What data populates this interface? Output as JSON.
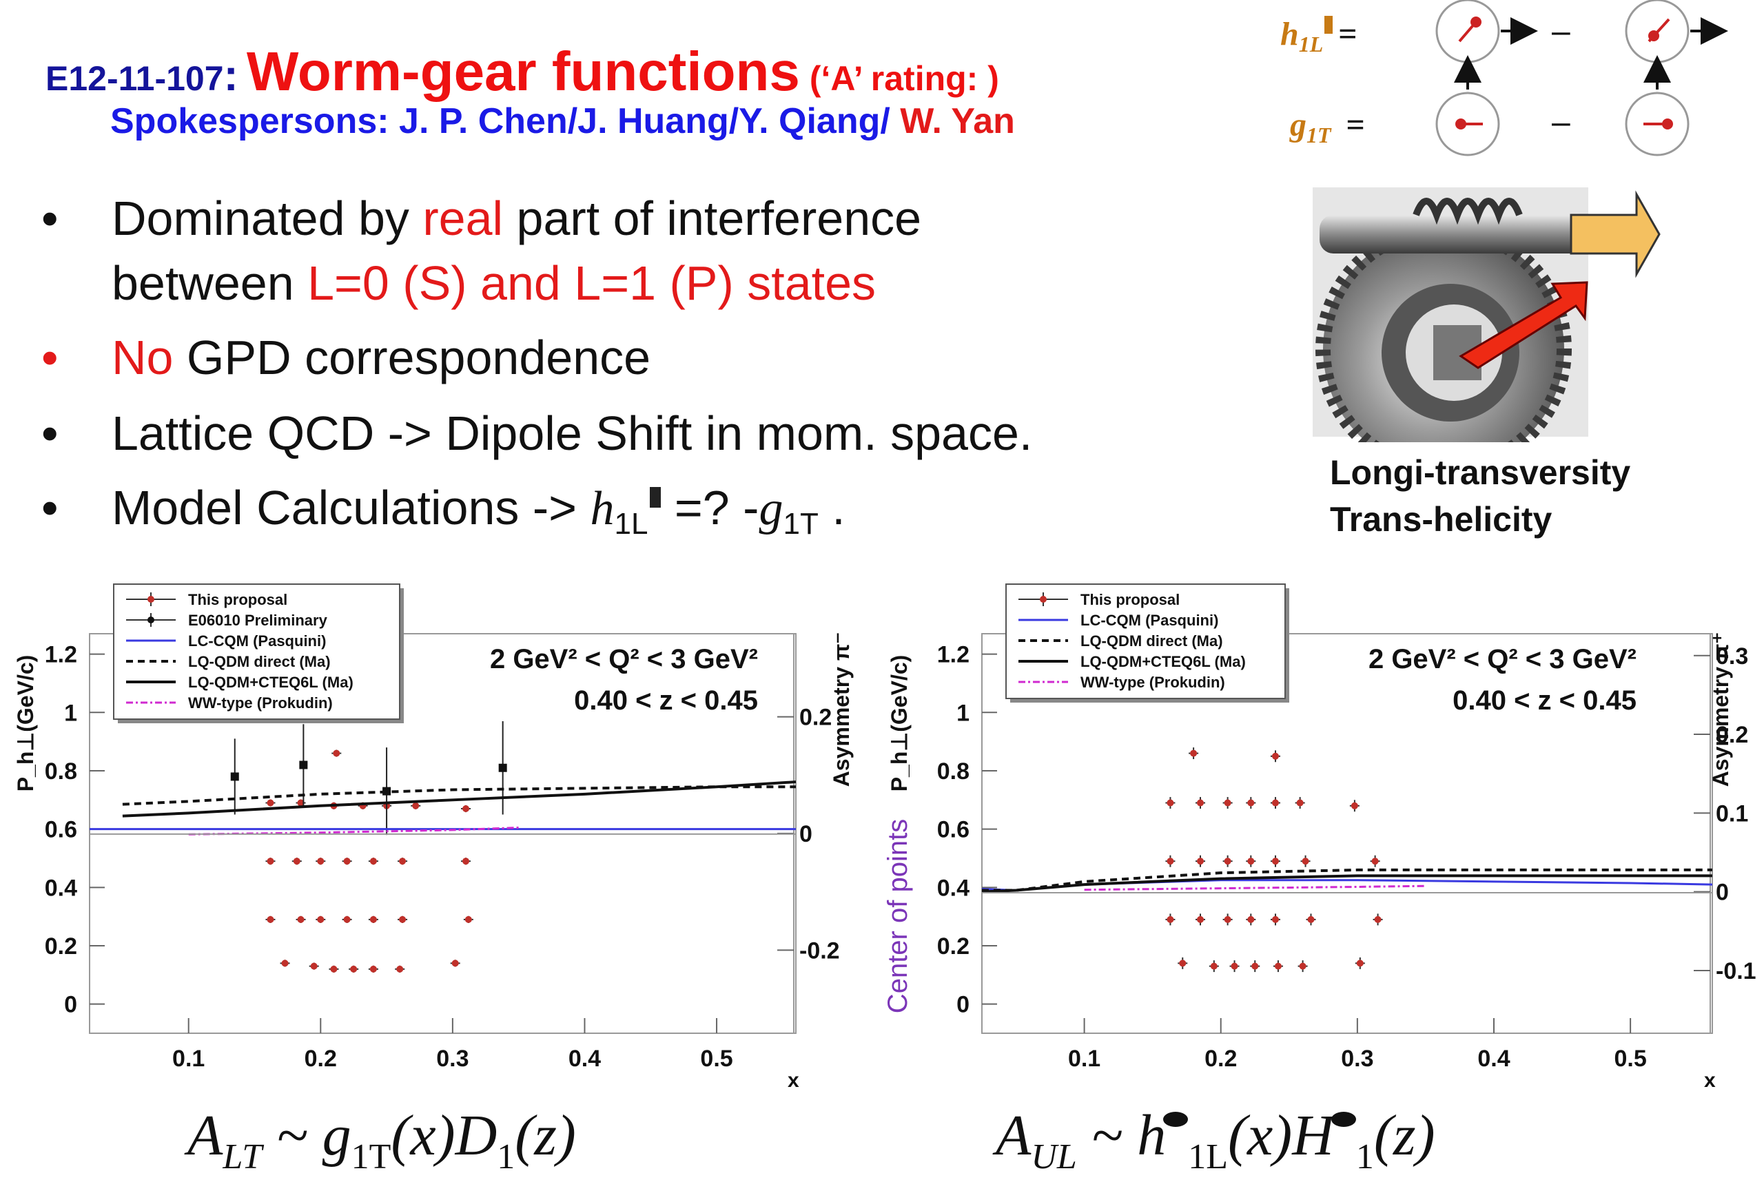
{
  "header": {
    "code": "E12-11-107",
    "colon": ":",
    "title": "Worm-gear functions",
    "rating": "(‘A’  rating: )",
    "spokes_blue": "Spokespersons: J. P. Chen/J. Huang/Y. Qiang/",
    "spokes_red": " W. Yan"
  },
  "bullets": {
    "b1_a": "Dominated by ",
    "b1_red": "real",
    "b1_b": " part of interference",
    "b1_c": "between ",
    "b1_red2": "L=0 (S) and L=1 (P) states",
    "b2_red": "No",
    "b2_b": " GPD correspondence",
    "b3": "Lattice  QCD -> Dipole Shift in mom. space.",
    "b4_a": "Model Calculations -> ",
    "b4_h": "h",
    "b4_hsub": "1L",
    "b4_mid": " =? -",
    "b4_g": "g",
    "b4_gsub": "1T",
    "b4_end": " ."
  },
  "diagram": {
    "h_label": "h",
    "h_sub": "1L",
    "g_label": "g",
    "g_sub": "1T",
    "eq": "=",
    "minus": "–"
  },
  "gear": {
    "caption1": "Longi-transversity",
    "caption2": "Trans-helicity"
  },
  "formulas": {
    "left": {
      "a": "A",
      "asub": "LT",
      "b": " ~ g",
      "bsub": "1T",
      "c": "(x)D",
      "csub": "1",
      "d": "(z)"
    },
    "right": {
      "a": "A",
      "asub": "UL",
      "b": " ~ h",
      "bsub": "1L",
      "c": "(x)H",
      "csub": "1",
      "d": "(z)"
    }
  },
  "colors": {
    "navy": "#14149a",
    "red": "#e31a1a",
    "blue": "#1a1ae6",
    "orange": "#c77a14",
    "purple": "#7b35b8",
    "point": "#c0302a"
  },
  "chart_data": [
    {
      "type": "scatter",
      "title": "",
      "annotation1": "2 GeV² < Q² < 3 GeV²",
      "annotation2": "0.40 < z < 0.45",
      "xlabel": "x",
      "ylabel": "P_h⊥(GeV/c)",
      "ylabel_right": "Asymmetry π⁻",
      "xlim": [
        0.025,
        0.56
      ],
      "ylim": [
        -0.1,
        1.27
      ],
      "x_ticks": [
        0.1,
        0.2,
        0.3,
        0.4,
        0.5
      ],
      "x_tick_labels": [
        "0.1",
        "0.2",
        "0.3",
        "0.4",
        "0.5"
      ],
      "y_ticks": [
        0,
        0.2,
        0.4,
        0.6,
        0.8,
        1.0,
        1.2
      ],
      "y_tick_labels": [
        "0",
        "0.2",
        "0.4",
        "0.6",
        "0.8",
        "1",
        "1.2"
      ],
      "right_axis": {
        "zero_at": 0.585,
        "scale": 2.0,
        "ticks": [
          -0.2,
          0,
          0.2
        ],
        "labels": [
          "-0.2",
          "0",
          "0.2"
        ]
      },
      "legend": {
        "placement": "top-left",
        "entries": [
          {
            "label": "This proposal",
            "style": "point-red"
          },
          {
            "label": "E06010 Preliminary",
            "style": "point-black"
          },
          {
            "label": "LC-CQM (Pasquini)",
            "style": "line-blue"
          },
          {
            "label": "LQ-QDM direct (Ma)",
            "style": "line-dashed"
          },
          {
            "label": "LQ-QDM+CTEQ6L (Ma)",
            "style": "line-solid"
          },
          {
            "label": "WW-type (Prokudin)",
            "style": "line-magenta"
          }
        ]
      },
      "series": [
        {
          "name": "This proposal",
          "style": "point-red",
          "err": 0.012,
          "points": [
            [
              0.162,
              0.69
            ],
            [
              0.185,
              0.69
            ],
            [
              0.212,
              0.86
            ],
            [
              0.21,
              0.68
            ],
            [
              0.232,
              0.68
            ],
            [
              0.25,
              0.68
            ],
            [
              0.272,
              0.68
            ],
            [
              0.31,
              0.67
            ],
            [
              0.162,
              0.49
            ],
            [
              0.182,
              0.49
            ],
            [
              0.2,
              0.49
            ],
            [
              0.22,
              0.49
            ],
            [
              0.24,
              0.49
            ],
            [
              0.262,
              0.49
            ],
            [
              0.31,
              0.49
            ],
            [
              0.162,
              0.29
            ],
            [
              0.185,
              0.29
            ],
            [
              0.2,
              0.29
            ],
            [
              0.22,
              0.29
            ],
            [
              0.24,
              0.29
            ],
            [
              0.262,
              0.29
            ],
            [
              0.312,
              0.29
            ],
            [
              0.173,
              0.14
            ],
            [
              0.195,
              0.13
            ],
            [
              0.21,
              0.12
            ],
            [
              0.225,
              0.12
            ],
            [
              0.24,
              0.12
            ],
            [
              0.26,
              0.12
            ],
            [
              0.302,
              0.14
            ]
          ]
        },
        {
          "name": "E06010 Preliminary",
          "style": "point-black",
          "points": [
            [
              0.135,
              0.78,
              0.13
            ],
            [
              0.187,
              0.82,
              0.14
            ],
            [
              0.25,
              0.73,
              0.15
            ],
            [
              0.338,
              0.81,
              0.16
            ]
          ]
        },
        {
          "name": "LC-CQM (Pasquini)",
          "style": "line-blue",
          "x": [
            0.025,
            0.1,
            0.2,
            0.3,
            0.4,
            0.5,
            0.56
          ],
          "y": [
            0.6,
            0.6,
            0.6,
            0.6,
            0.6,
            0.6,
            0.6
          ]
        },
        {
          "name": "LQ-QDM direct (Ma)",
          "style": "line-dashed",
          "x": [
            0.05,
            0.1,
            0.2,
            0.3,
            0.4,
            0.5,
            0.56
          ],
          "y": [
            0.685,
            0.695,
            0.72,
            0.735,
            0.74,
            0.745,
            0.745
          ]
        },
        {
          "name": "LQ-QDM+CTEQ6L (Ma)",
          "style": "line-solid",
          "x": [
            0.05,
            0.1,
            0.2,
            0.3,
            0.4,
            0.5,
            0.56
          ],
          "y": [
            0.645,
            0.655,
            0.68,
            0.7,
            0.72,
            0.745,
            0.762
          ]
        },
        {
          "name": "WW-type (Prokudin)",
          "style": "line-magenta",
          "x": [
            0.1,
            0.2,
            0.3,
            0.35
          ],
          "y": [
            0.582,
            0.588,
            0.597,
            0.605
          ]
        },
        {
          "name": "zero-line",
          "style": "line-gray",
          "x": [
            0.025,
            0.56
          ],
          "y": [
            0.583,
            0.583
          ]
        }
      ]
    },
    {
      "type": "scatter",
      "title": "",
      "annotation1": "2 GeV² < Q² < 3 GeV²",
      "annotation2": "0.40 < z < 0.45",
      "xlabel": "x",
      "ylabel": "P_h⊥(GeV/c)",
      "ylabel_overlay": "Center of points",
      "ylabel_right": "Asymmetry π⁺",
      "xlim": [
        0.025,
        0.56
      ],
      "ylim": [
        -0.1,
        1.27
      ],
      "x_ticks": [
        0.1,
        0.2,
        0.3,
        0.4,
        0.5
      ],
      "x_tick_labels": [
        "0.1",
        "0.2",
        "0.3",
        "0.4",
        "0.5"
      ],
      "y_ticks": [
        0,
        0.2,
        0.4,
        0.6,
        0.8,
        1.0,
        1.2
      ],
      "y_tick_labels": [
        "0",
        "0.2",
        "0.4",
        "0.6",
        "0.8",
        "1",
        "1.2"
      ],
      "right_axis": {
        "zero_at": 0.385,
        "scale": 2.7,
        "ticks": [
          -0.1,
          0,
          0.1,
          0.2,
          0.3
        ],
        "labels": [
          "-0.1",
          "0",
          "0.1",
          "0.2",
          "0.3"
        ]
      },
      "legend": {
        "placement": "top-left",
        "entries": [
          {
            "label": "This proposal",
            "style": "point-red"
          },
          {
            "label": "LC-CQM (Pasquini)",
            "style": "line-blue"
          },
          {
            "label": "LQ-QDM direct (Ma)",
            "style": "line-dashed"
          },
          {
            "label": "LQ-QDM+CTEQ6L (Ma)",
            "style": "line-solid"
          },
          {
            "label": "WW-type (Prokudin)",
            "style": "line-magenta"
          }
        ]
      },
      "series": [
        {
          "name": "This proposal",
          "style": "point-red",
          "err": 0.02,
          "points": [
            [
              0.18,
              0.86
            ],
            [
              0.24,
              0.85
            ],
            [
              0.163,
              0.69
            ],
            [
              0.185,
              0.69
            ],
            [
              0.205,
              0.69
            ],
            [
              0.222,
              0.69
            ],
            [
              0.24,
              0.69
            ],
            [
              0.258,
              0.69
            ],
            [
              0.298,
              0.68
            ],
            [
              0.163,
              0.49
            ],
            [
              0.185,
              0.49
            ],
            [
              0.205,
              0.49
            ],
            [
              0.222,
              0.49
            ],
            [
              0.24,
              0.49
            ],
            [
              0.262,
              0.49
            ],
            [
              0.313,
              0.49
            ],
            [
              0.163,
              0.29
            ],
            [
              0.185,
              0.29
            ],
            [
              0.205,
              0.29
            ],
            [
              0.222,
              0.29
            ],
            [
              0.24,
              0.29
            ],
            [
              0.266,
              0.29
            ],
            [
              0.315,
              0.29
            ],
            [
              0.172,
              0.14
            ],
            [
              0.195,
              0.13
            ],
            [
              0.21,
              0.13
            ],
            [
              0.225,
              0.13
            ],
            [
              0.242,
              0.13
            ],
            [
              0.26,
              0.13
            ],
            [
              0.302,
              0.14
            ]
          ]
        },
        {
          "name": "LC-CQM (Pasquini)",
          "style": "line-blue",
          "x": [
            0.025,
            0.05,
            0.1,
            0.2,
            0.3,
            0.4,
            0.5,
            0.56
          ],
          "y": [
            0.395,
            0.39,
            0.41,
            0.425,
            0.425,
            0.42,
            0.415,
            0.41
          ]
        },
        {
          "name": "LQ-QDM direct (Ma)",
          "style": "line-dashed",
          "x": [
            0.025,
            0.05,
            0.1,
            0.2,
            0.3,
            0.4,
            0.5,
            0.56
          ],
          "y": [
            0.39,
            0.39,
            0.42,
            0.45,
            0.46,
            0.46,
            0.46,
            0.46
          ]
        },
        {
          "name": "LQ-QDM+CTEQ6L (Ma)",
          "style": "line-solid",
          "x": [
            0.025,
            0.05,
            0.1,
            0.2,
            0.3,
            0.4,
            0.5,
            0.56
          ],
          "y": [
            0.385,
            0.39,
            0.41,
            0.43,
            0.44,
            0.44,
            0.44,
            0.44
          ]
        },
        {
          "name": "WW-type (Prokudin)",
          "style": "line-magenta",
          "x": [
            0.1,
            0.2,
            0.3,
            0.35
          ],
          "y": [
            0.392,
            0.397,
            0.402,
            0.405
          ]
        },
        {
          "name": "zero-line",
          "style": "line-gray",
          "x": [
            0.025,
            0.56
          ],
          "y": [
            0.382,
            0.382
          ]
        }
      ]
    }
  ]
}
